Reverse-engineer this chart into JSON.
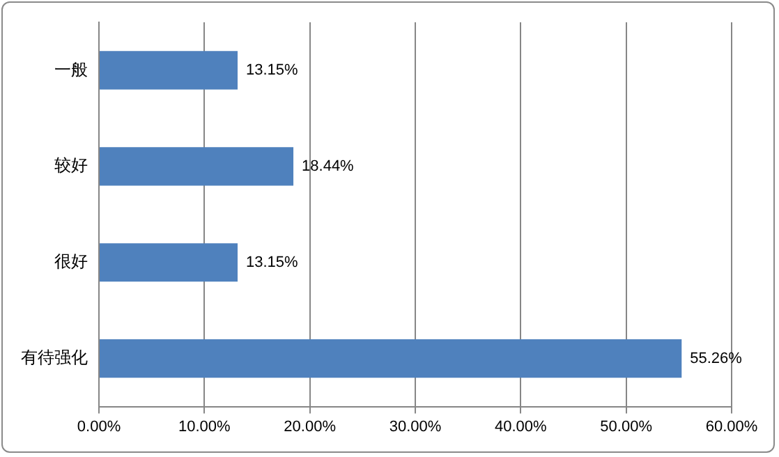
{
  "chart_data": {
    "type": "bar",
    "orientation": "horizontal",
    "categories": [
      "一般",
      "较好",
      "很好",
      "有待强化"
    ],
    "values": [
      13.15,
      18.44,
      13.15,
      55.26
    ],
    "value_labels": [
      "13.15%",
      "18.44%",
      "13.15%",
      "55.26%"
    ],
    "color": "#4f81bd",
    "xlim": [
      0,
      60
    ],
    "xticks": [
      {
        "value": 0,
        "label": "0.00%"
      },
      {
        "value": 10,
        "label": "10.00%"
      },
      {
        "value": 20,
        "label": "20.00%"
      },
      {
        "value": 30,
        "label": "30.00%"
      },
      {
        "value": 40,
        "label": "40.00%"
      },
      {
        "value": 50,
        "label": "50.00%"
      },
      {
        "value": 60,
        "label": "60.00%"
      }
    ],
    "grid": "x",
    "legend": false
  }
}
